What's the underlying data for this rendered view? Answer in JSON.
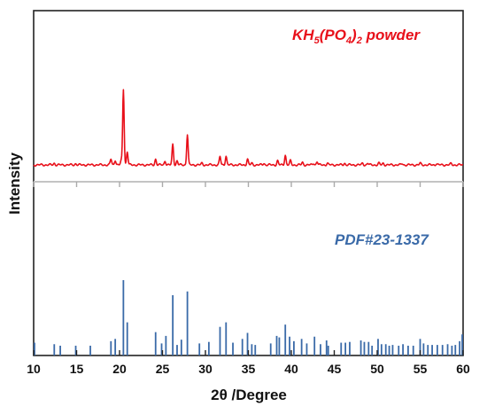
{
  "chart_data": {
    "type": "line",
    "xlabel": "2θ /Degree",
    "ylabel": "Intensity",
    "xlim": [
      10,
      60
    ],
    "x_ticks": [
      10,
      15,
      20,
      25,
      30,
      35,
      40,
      45,
      50,
      55,
      60
    ],
    "x_tick_labels": [
      "10",
      "15",
      "20",
      "25",
      "30",
      "35",
      "40",
      "45",
      "50",
      "55",
      "60"
    ],
    "y_ticks_shown": false,
    "panels": [
      "top",
      "bottom"
    ],
    "annotations": {
      "top": {
        "formula_main": "KH",
        "sub1": "5",
        "mid1": "(PO",
        "sub2": "4",
        "mid2": ")",
        "sub3": "2",
        "suffix": " powder",
        "color": "#e8101a"
      },
      "bottom": {
        "text": "PDF#23-1337",
        "color": "#3a6aa8"
      }
    },
    "series": [
      {
        "kind": "pattern",
        "color": "#e8101a",
        "ylim": [
          0,
          100
        ],
        "baseline": 5,
        "peaks": [
          [
            12.4,
            2
          ],
          [
            14.9,
            1.5
          ],
          [
            19.0,
            7
          ],
          [
            19.5,
            6
          ],
          [
            20.2,
            5
          ],
          [
            20.45,
            92
          ],
          [
            20.9,
            16
          ],
          [
            24.2,
            7
          ],
          [
            25.3,
            5
          ],
          [
            26.2,
            25
          ],
          [
            26.7,
            5
          ],
          [
            27.9,
            37
          ],
          [
            29.6,
            2
          ],
          [
            31.7,
            10
          ],
          [
            32.4,
            11
          ],
          [
            34.9,
            7
          ],
          [
            35.4,
            2
          ],
          [
            36.8,
            2
          ],
          [
            38.4,
            5
          ],
          [
            39.3,
            12
          ],
          [
            39.9,
            5
          ],
          [
            41.3,
            3
          ],
          [
            42.6,
            2
          ],
          [
            43.0,
            4
          ],
          [
            44.2,
            2
          ],
          [
            46.2,
            2
          ],
          [
            48.3,
            2
          ],
          [
            48.9,
            2
          ],
          [
            50.2,
            2
          ],
          [
            50.7,
            2
          ],
          [
            52.9,
            1.5
          ],
          [
            55.0,
            2
          ],
          [
            56.9,
            1.5
          ],
          [
            58.6,
            1.5
          ]
        ]
      },
      {
        "kind": "sticks",
        "color": "#3a6aa8",
        "ylim": [
          0,
          100
        ],
        "sticks": [
          [
            10.1,
            17
          ],
          [
            12.4,
            15
          ],
          [
            13.1,
            13
          ],
          [
            14.9,
            13
          ],
          [
            16.6,
            13
          ],
          [
            19.0,
            19
          ],
          [
            19.5,
            22
          ],
          [
            20.45,
            100
          ],
          [
            20.9,
            44
          ],
          [
            24.2,
            31
          ],
          [
            24.9,
            16
          ],
          [
            25.4,
            26
          ],
          [
            26.2,
            80
          ],
          [
            26.7,
            14
          ],
          [
            27.2,
            21
          ],
          [
            27.9,
            85
          ],
          [
            29.3,
            16
          ],
          [
            30.4,
            18
          ],
          [
            31.7,
            38
          ],
          [
            32.4,
            44
          ],
          [
            33.2,
            17
          ],
          [
            34.3,
            22
          ],
          [
            34.9,
            30
          ],
          [
            35.4,
            15
          ],
          [
            35.8,
            14
          ],
          [
            37.6,
            16
          ],
          [
            38.3,
            26
          ],
          [
            38.6,
            24
          ],
          [
            39.3,
            41
          ],
          [
            39.8,
            25
          ],
          [
            40.3,
            19
          ],
          [
            41.2,
            22
          ],
          [
            41.8,
            16
          ],
          [
            42.7,
            25
          ],
          [
            43.4,
            15
          ],
          [
            44.1,
            20
          ],
          [
            44.3,
            13
          ],
          [
            45.8,
            17
          ],
          [
            46.3,
            17
          ],
          [
            46.8,
            18
          ],
          [
            48.1,
            20
          ],
          [
            48.5,
            18
          ],
          [
            49.0,
            18
          ],
          [
            49.4,
            13
          ],
          [
            50.1,
            22
          ],
          [
            50.5,
            15
          ],
          [
            51.0,
            15
          ],
          [
            51.4,
            13
          ],
          [
            51.8,
            14
          ],
          [
            52.5,
            13
          ],
          [
            53.0,
            15
          ],
          [
            53.6,
            13
          ],
          [
            54.2,
            13
          ],
          [
            55.0,
            22
          ],
          [
            55.4,
            16
          ],
          [
            55.9,
            14
          ],
          [
            56.4,
            14
          ],
          [
            57.0,
            14
          ],
          [
            57.6,
            14
          ],
          [
            58.2,
            15
          ],
          [
            58.7,
            13
          ],
          [
            59.1,
            14
          ],
          [
            59.6,
            19
          ],
          [
            59.9,
            28
          ]
        ]
      }
    ]
  }
}
